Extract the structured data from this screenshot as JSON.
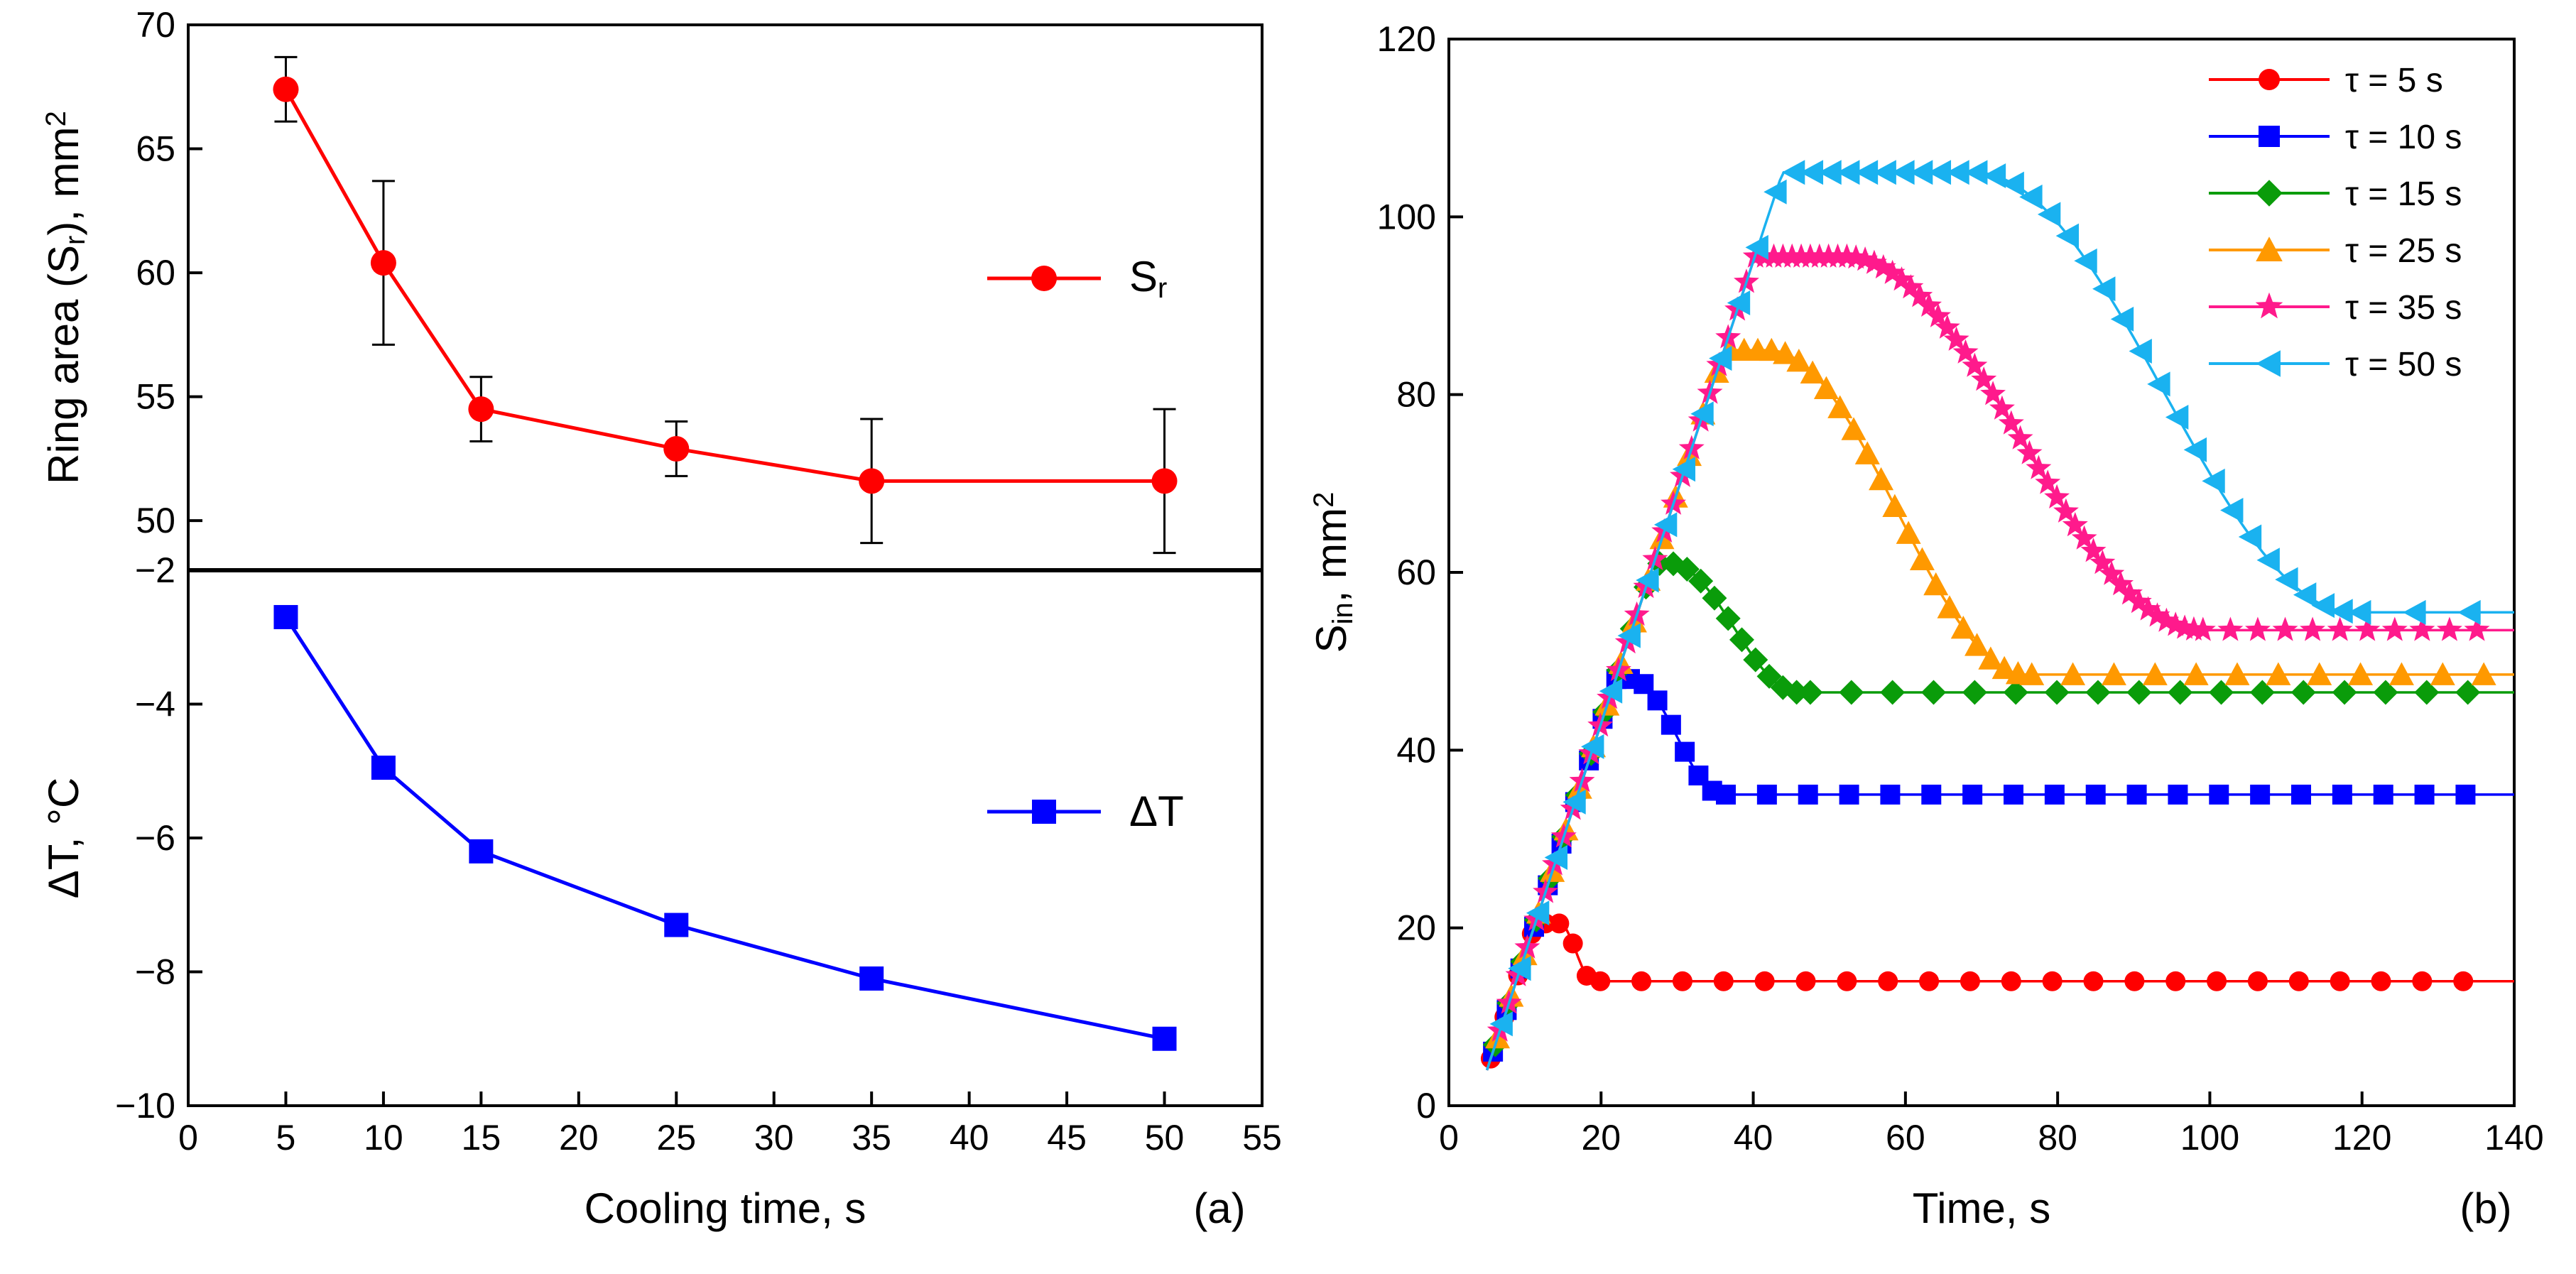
{
  "chart_data": [
    {
      "panel": "a-top",
      "type": "line",
      "ylabel": "Ring area (S",
      "ylabel_sub": "r",
      "ylabel_tail": "), mm",
      "ylabel_sup": "2",
      "ylim": [
        48,
        70
      ],
      "yticks": [
        "50",
        "55",
        "60",
        "65",
        "70"
      ],
      "ytick_values": [
        50,
        55,
        60,
        65,
        70
      ],
      "legend": {
        "label": "S",
        "sub": "r",
        "position": "right"
      },
      "color": "#ff0000",
      "marker": "circle",
      "x": [
        5,
        10,
        15,
        25,
        35,
        50
      ],
      "y": [
        67.4,
        60.4,
        54.5,
        52.9,
        51.6,
        51.6
      ],
      "yerr": [
        1.3,
        3.3,
        1.3,
        1.1,
        2.5,
        2.9
      ]
    },
    {
      "panel": "a-bottom",
      "type": "line",
      "ylabel": "ΔT, °C",
      "ylim": [
        -10,
        -2
      ],
      "yticks": [
        "−2",
        "−4",
        "−6",
        "−8",
        "−10"
      ],
      "ytick_values": [
        -2,
        -4,
        -6,
        -8,
        -10
      ],
      "xlabel": "Cooling time, s",
      "xlim": [
        0,
        55
      ],
      "xticks": [
        "0",
        "5",
        "10",
        "15",
        "20",
        "25",
        "30",
        "35",
        "40",
        "45",
        "50",
        "55"
      ],
      "xtick_values": [
        0,
        5,
        10,
        15,
        20,
        25,
        30,
        35,
        40,
        45,
        50,
        55
      ],
      "legend": {
        "label": "ΔT",
        "position": "right"
      },
      "color": "#0000ff",
      "marker": "square",
      "x": [
        5,
        10,
        15,
        25,
        35,
        50
      ],
      "y": [
        -2.7,
        -4.95,
        -6.2,
        -7.3,
        -8.1,
        -9.0
      ],
      "panel_label": "(a)"
    },
    {
      "panel": "b",
      "type": "line",
      "xlabel": "Time, s",
      "ylabel": "S",
      "ylabel_sub": "in",
      "ylabel_tail": ", mm",
      "ylabel_sup": "2",
      "xlim": [
        0,
        140
      ],
      "ylim": [
        0,
        120
      ],
      "xticks": [
        "0",
        "20",
        "40",
        "60",
        "80",
        "100",
        "120",
        "140"
      ],
      "xtick_values": [
        0,
        20,
        40,
        60,
        80,
        100,
        120,
        140
      ],
      "yticks": [
        "0",
        "20",
        "40",
        "60",
        "80",
        "100",
        "120"
      ],
      "ytick_values": [
        0,
        20,
        40,
        60,
        80,
        100,
        120
      ],
      "panel_label": "(b)",
      "legend_position": "top-right",
      "series": [
        {
          "name": "τ = 5 s",
          "color": "#ff0000",
          "marker": "circle",
          "tau": 5,
          "peak": 20.5,
          "plateau": 14,
          "peak_t": 14.5,
          "settle_t": 19,
          "rise_slope": 2.6,
          "end_t": 140,
          "marker_step": 3
        },
        {
          "name": "τ = 10 s",
          "color": "#0000ff",
          "marker": "square",
          "tau": 10,
          "peak": 48,
          "plateau": 35,
          "peak_t": 24,
          "settle_t": 36,
          "rise_slope": 2.6,
          "end_t": 140,
          "marker_step": 3
        },
        {
          "name": "τ = 15 s",
          "color": "#0a9c0a",
          "marker": "diamond",
          "tau": 15,
          "peak": 61,
          "plateau": 46.5,
          "peak_t": 29,
          "settle_t": 46,
          "rise_slope": 2.6,
          "end_t": 140,
          "marker_step": 3
        },
        {
          "name": "τ = 25 s",
          "color": "#ff9900",
          "marker": "triangle-up",
          "tau": 25,
          "peak": 85,
          "plateau": 48.5,
          "peak_t": 42,
          "settle_t": 76,
          "rise_slope": 2.6,
          "end_t": 140,
          "marker_step": 3
        },
        {
          "name": "τ = 35 s",
          "color": "#ff1a8c",
          "marker": "star",
          "tau": 35,
          "peak": 95.5,
          "plateau": 53.5,
          "peak_t": 52,
          "settle_t": 99,
          "rise_slope": 2.6,
          "end_t": 140,
          "marker_step": 2
        },
        {
          "name": "τ = 50 s",
          "color": "#1ab2f0",
          "marker": "triangle-left",
          "tau": 50,
          "peak": 105,
          "plateau": 55.5,
          "peak_t": 69,
          "settle_t": 119,
          "rise_slope": 2.6,
          "end_t": 140,
          "marker_step": 4
        }
      ]
    }
  ]
}
